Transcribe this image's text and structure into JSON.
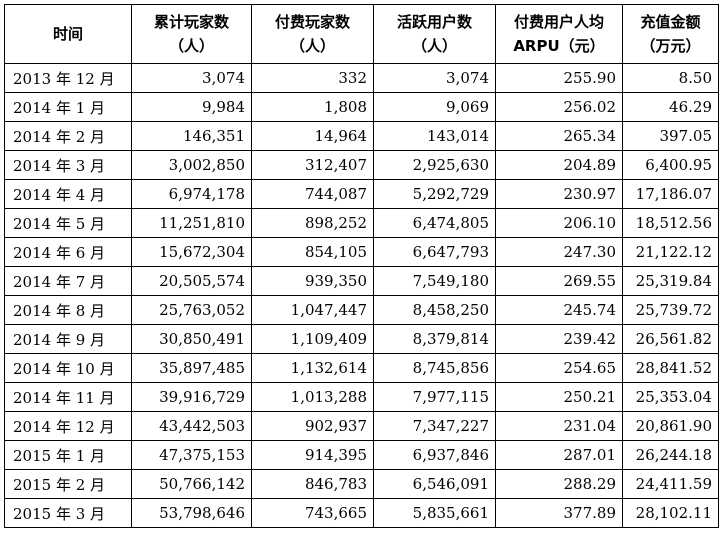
{
  "headers": [
    {
      "line1": "时间",
      "line2": ""
    },
    {
      "line1": "累计玩家数",
      "line2": "（人）"
    },
    {
      "line1": "付费玩家数",
      "line2": "（人）"
    },
    {
      "line1": "活跃用户数",
      "line2": "（人）"
    },
    {
      "line1": "付费用户人均",
      "line2": "ARPU（元）"
    },
    {
      "line1": "充值金额",
      "line2": "（万元）"
    }
  ],
  "rows": [
    [
      "2013 年 12 月",
      "3,074",
      "332",
      "3,074",
      "255.90",
      "8.50"
    ],
    [
      "2014 年 1 月",
      "9,984",
      "1,808",
      "9,069",
      "256.02",
      "46.29"
    ],
    [
      "2014 年 2 月",
      "146,351",
      "14,964",
      "143,014",
      "265.34",
      "397.05"
    ],
    [
      "2014 年 3 月",
      "3,002,850",
      "312,407",
      "2,925,630",
      "204.89",
      "6,400.95"
    ],
    [
      "2014 年 4 月",
      "6,974,178",
      "744,087",
      "5,292,729",
      "230.97",
      "17,186.07"
    ],
    [
      "2014 年 5 月",
      "11,251,810",
      "898,252",
      "6,474,805",
      "206.10",
      "18,512.56"
    ],
    [
      "2014 年 6 月",
      "15,672,304",
      "854,105",
      "6,647,793",
      "247.30",
      "21,122.12"
    ],
    [
      "2014 年 7 月",
      "20,505,574",
      "939,350",
      "7,549,180",
      "269.55",
      "25,319.84"
    ],
    [
      "2014 年 8 月",
      "25,763,052",
      "1,047,447",
      "8,458,250",
      "245.74",
      "25,739.72"
    ],
    [
      "2014 年 9 月",
      "30,850,491",
      "1,109,409",
      "8,379,814",
      "239.42",
      "26,561.82"
    ],
    [
      "2014 年 10 月",
      "35,897,485",
      "1,132,614",
      "8,745,856",
      "254.65",
      "28,841.52"
    ],
    [
      "2014 年 11 月",
      "39,916,729",
      "1,013,288",
      "7,977,115",
      "250.21",
      "25,353.04"
    ],
    [
      "2014 年 12 月",
      "43,442,503",
      "902,937",
      "7,347,227",
      "231.04",
      "20,861.90"
    ],
    [
      "2015 年 1 月",
      "47,375,153",
      "914,395",
      "6,937,846",
      "287.01",
      "26,244.18"
    ],
    [
      "2015 年 2 月",
      "50,766,142",
      "846,783",
      "6,546,091",
      "288.29",
      "24,411.59"
    ],
    [
      "2015 年 3 月",
      "53,798,646",
      "743,665",
      "5,835,661",
      "377.89",
      "28,102.11"
    ]
  ]
}
